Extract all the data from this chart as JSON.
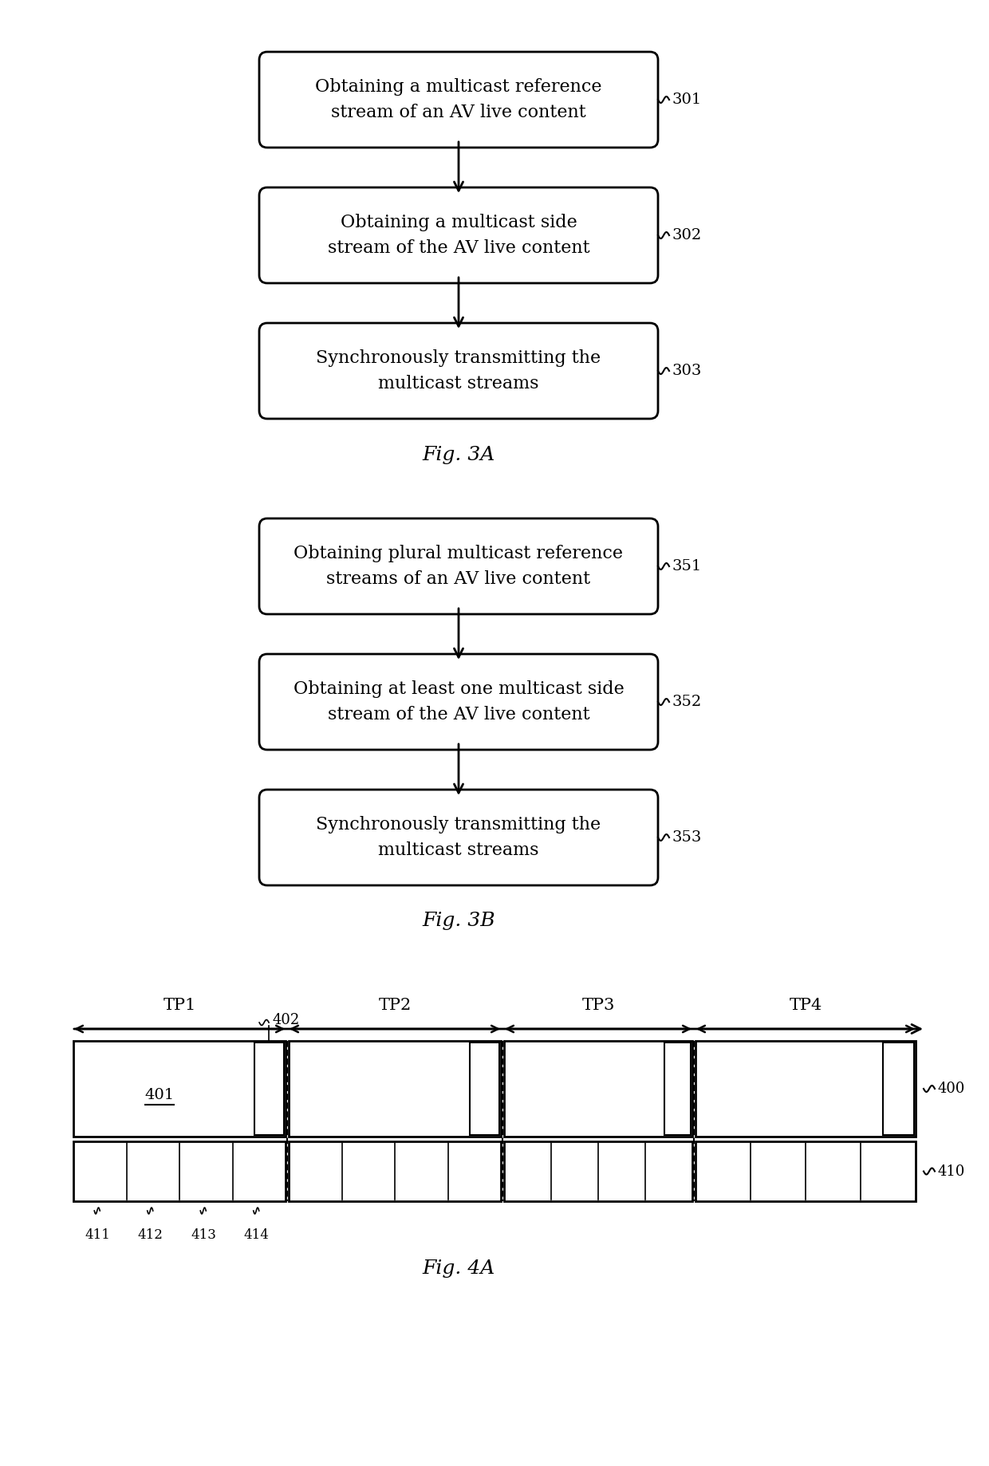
{
  "bg_color": "#ffffff",
  "fig3a": {
    "title": "Fig. 3A",
    "boxes": [
      {
        "text": "Obtaining a multicast reference\nstream of an AV live content",
        "label": "301"
      },
      {
        "text": "Obtaining a multicast side\nstream of the AV live content",
        "label": "302"
      },
      {
        "text": "Synchronously transmitting the\nmulticast streams",
        "label": "303"
      }
    ]
  },
  "fig3b": {
    "title": "Fig. 3B",
    "boxes": [
      {
        "text": "Obtaining plural multicast reference\nstreams of an AV live content",
        "label": "351"
      },
      {
        "text": "Obtaining at least one multicast side\nstream of the AV live content",
        "label": "352"
      },
      {
        "text": "Synchronously transmitting the\nmulticast streams",
        "label": "353"
      }
    ]
  },
  "fig4a": {
    "title": "Fig. 4A",
    "tp_labels": [
      "TP1",
      "TP2",
      "TP3",
      "TP4"
    ],
    "tp_bounds": [
      90,
      360,
      630,
      870,
      1150
    ],
    "label_400": "400",
    "label_410": "410",
    "label_401": "401",
    "label_402": "402",
    "bottom_labels": [
      "411",
      "412",
      "413",
      "414"
    ]
  }
}
